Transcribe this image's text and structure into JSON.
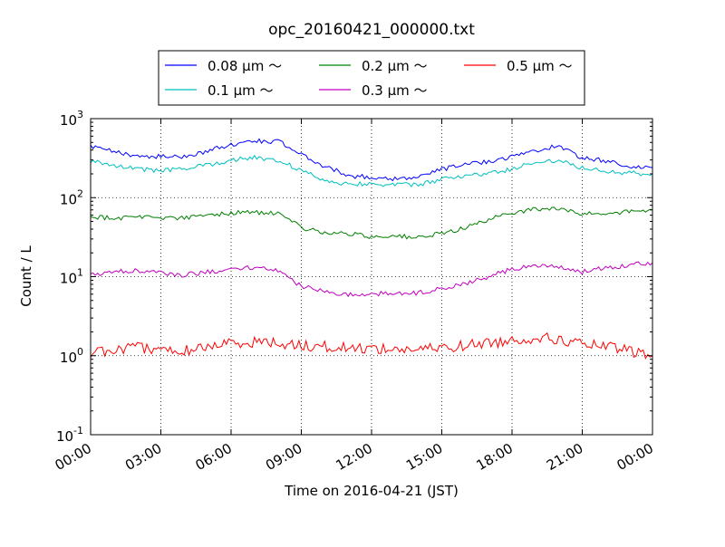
{
  "chart_data": {
    "type": "line",
    "title": "opc_20160421_000000.txt",
    "xlabel": "Time on 2016-04-21 (JST)",
    "ylabel": "Count / L",
    "yscale": "log",
    "ylim": [
      0.1,
      1000
    ],
    "y_ticks": [
      {
        "value": 0.1,
        "base": "10",
        "exp": "-1"
      },
      {
        "value": 1,
        "base": "10",
        "exp": "0"
      },
      {
        "value": 10,
        "base": "10",
        "exp": "1"
      },
      {
        "value": 100,
        "base": "10",
        "exp": "2"
      },
      {
        "value": 1000,
        "base": "10",
        "exp": "3"
      }
    ],
    "xlim": [
      "2016-04-21 00:00",
      "2016-04-22 00:00"
    ],
    "x_ticks": [
      {
        "time": "2016-04-21 00:00",
        "label": "00:00"
      },
      {
        "time": "2016-04-21 03:00",
        "label": "03:00"
      },
      {
        "time": "2016-04-21 06:00",
        "label": "06:00"
      },
      {
        "time": "2016-04-21 09:00",
        "label": "09:00"
      },
      {
        "time": "2016-04-21 12:00",
        "label": "12:00"
      },
      {
        "time": "2016-04-21 15:00",
        "label": "15:00"
      },
      {
        "time": "2016-04-21 18:00",
        "label": "18:00"
      },
      {
        "time": "2016-04-21 21:00",
        "label": "21:00"
      },
      {
        "time": "2016-04-22 00:00",
        "label": "00:00"
      }
    ],
    "x": [
      "2016-04-21 00:00",
      "2016-04-21 01:00",
      "2016-04-21 02:00",
      "2016-04-21 03:00",
      "2016-04-21 04:00",
      "2016-04-21 05:00",
      "2016-04-21 06:00",
      "2016-04-21 07:00",
      "2016-04-21 08:00",
      "2016-04-21 09:00",
      "2016-04-21 10:00",
      "2016-04-21 11:00",
      "2016-04-21 12:00",
      "2016-04-21 13:00",
      "2016-04-21 14:00",
      "2016-04-21 15:00",
      "2016-04-21 16:00",
      "2016-04-21 17:00",
      "2016-04-21 18:00",
      "2016-04-21 19:00",
      "2016-04-21 20:00",
      "2016-04-21 21:00",
      "2016-04-21 22:00",
      "2016-04-21 23:00",
      "2016-04-22 00:00"
    ],
    "grid": true,
    "legend": {
      "placement": "top-center, above plot",
      "columns": 3
    },
    "series": [
      {
        "name": "0.08 μm ～",
        "color": "#0000ff",
        "values": [
          440,
          380,
          340,
          330,
          330,
          390,
          470,
          520,
          520,
          350,
          250,
          190,
          180,
          175,
          180,
          230,
          260,
          290,
          330,
          400,
          450,
          320,
          290,
          250,
          240
        ]
      },
      {
        "name": "0.1 μm ～",
        "color": "#00bfbf",
        "values": [
          290,
          260,
          230,
          220,
          230,
          260,
          300,
          320,
          300,
          220,
          165,
          150,
          150,
          145,
          145,
          170,
          190,
          200,
          230,
          280,
          300,
          240,
          220,
          205,
          200
        ]
      },
      {
        "name": "0.2 μm ～",
        "color": "#008000",
        "values": [
          58,
          55,
          58,
          56,
          55,
          60,
          64,
          66,
          62,
          42,
          36,
          35,
          32,
          33,
          31,
          35,
          42,
          52,
          65,
          72,
          72,
          62,
          64,
          66,
          70
        ]
      },
      {
        "name": "0.3 μm ～",
        "color": "#bf00bf",
        "values": [
          10.5,
          11.5,
          12,
          11,
          10.5,
          11.5,
          12.5,
          13,
          12,
          7.5,
          6.5,
          6,
          6,
          6.2,
          6.2,
          7,
          8.2,
          10,
          12.5,
          14,
          13,
          11.5,
          13,
          14,
          15
        ]
      },
      {
        "name": "0.5 μm ～",
        "color": "#ff0000",
        "values": [
          1.1,
          1.2,
          1.25,
          1.2,
          1.15,
          1.3,
          1.45,
          1.5,
          1.45,
          1.35,
          1.3,
          1.25,
          1.25,
          1.2,
          1.2,
          1.25,
          1.35,
          1.45,
          1.55,
          1.7,
          1.6,
          1.4,
          1.3,
          1.15,
          1.0
        ]
      }
    ]
  }
}
